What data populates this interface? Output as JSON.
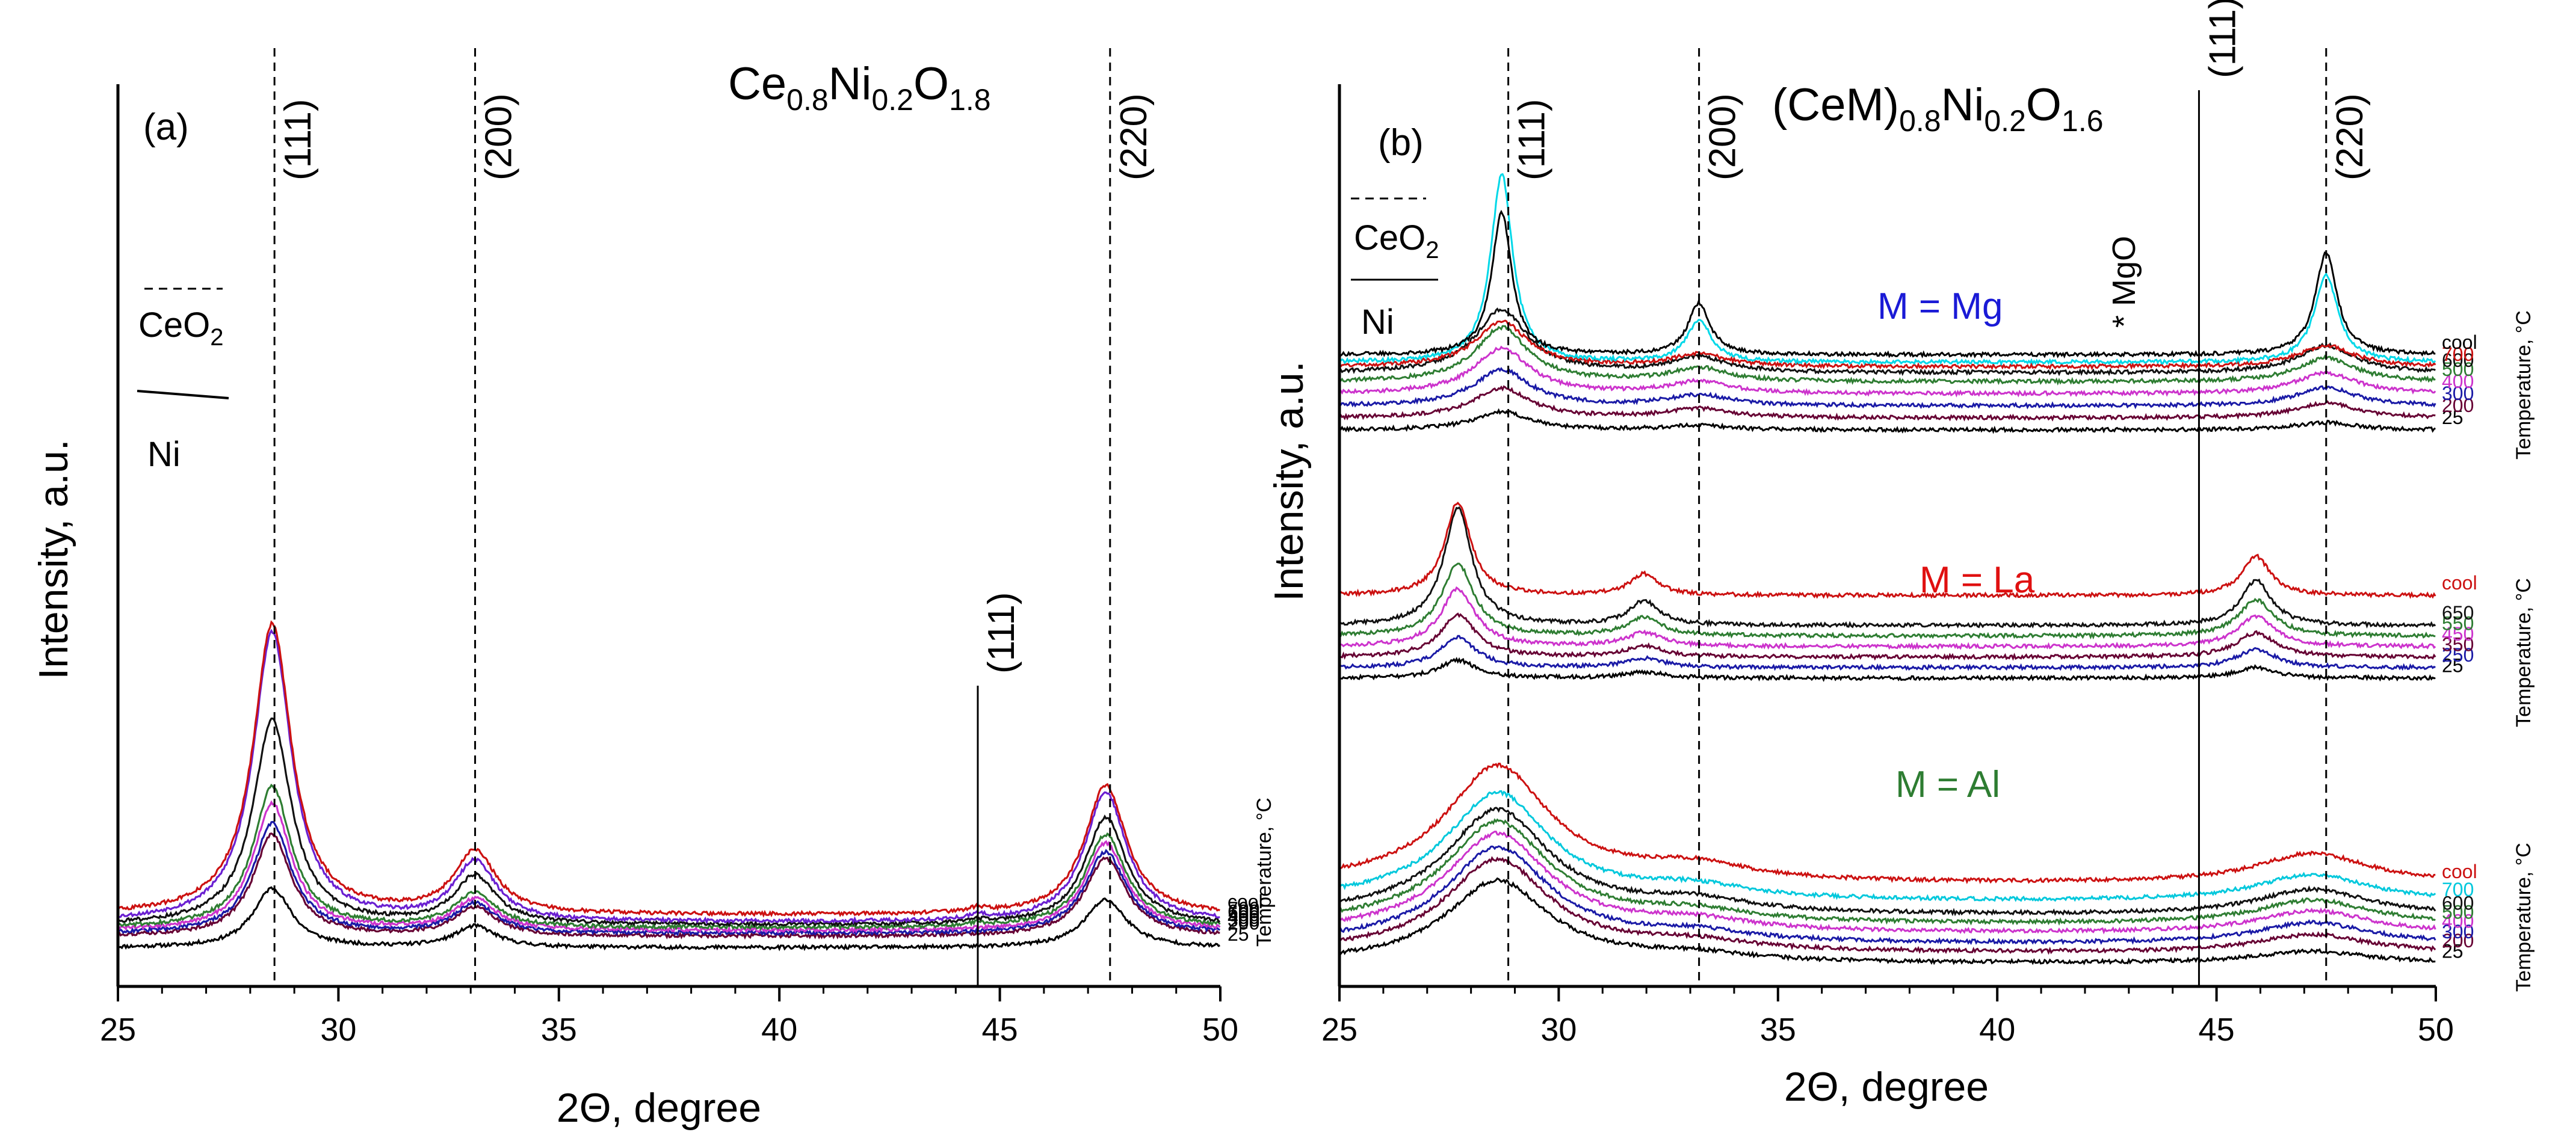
{
  "figure": {
    "description": "In-situ XRD patterns vs temperature"
  },
  "chart_data": [
    {
      "panel": "a",
      "type": "line",
      "panel_label": "(a)",
      "title_parts": [
        {
          "t": "Ce",
          "sub": false
        },
        {
          "t": "0.8",
          "sub": true
        },
        {
          "t": "Ni",
          "sub": false
        },
        {
          "t": "0.2",
          "sub": true
        },
        {
          "t": "O",
          "sub": false
        },
        {
          "t": "1.8",
          "sub": true
        }
      ],
      "xlabel": "2Θ, degree",
      "ylabel": "Intensity, a.u.",
      "xlim": [
        25,
        50
      ],
      "xticks": [
        "25",
        "30",
        "35",
        "40",
        "45",
        "50"
      ],
      "tick_values": [
        25,
        30,
        35,
        40,
        45,
        50
      ],
      "temperature_axis_label": "Temperature, °C",
      "legend": {
        "ceo2": "CeO",
        "ceo2_sub": "2",
        "ni": "Ni"
      },
      "reflections": [
        {
          "label": "(111)",
          "x": 28.55,
          "phase": "CeO2",
          "style": "dashed"
        },
        {
          "label": "(200)",
          "x": 33.1,
          "phase": "CeO2",
          "style": "dashed"
        },
        {
          "label": "(220)",
          "x": 47.5,
          "phase": "CeO2",
          "style": "dashed"
        },
        {
          "label": "(111)",
          "x": 44.5,
          "phase": "Ni",
          "style": "solid"
        }
      ],
      "peak_positions": [
        28.5,
        33.1,
        47.4
      ],
      "series": [
        {
          "name": "25",
          "color": "#000000",
          "baseline": 0.06,
          "peaks": [
            0.42,
            0.15,
            0.34
          ],
          "ni": 0.0
        },
        {
          "name": "200",
          "color": "#660033",
          "baseline": 0.14,
          "peaks": [
            0.72,
            0.2,
            0.55
          ],
          "ni": 0.0
        },
        {
          "name": "300",
          "color": "#1a1aa6",
          "baseline": 0.16,
          "peaks": [
            0.78,
            0.21,
            0.58
          ],
          "ni": 0.0
        },
        {
          "name": "400",
          "color": "#cc33cc",
          "baseline": 0.18,
          "peaks": [
            0.9,
            0.22,
            0.62
          ],
          "ni": 0.0
        },
        {
          "name": "500",
          "color": "#2e7d32",
          "baseline": 0.2,
          "peaks": [
            1.0,
            0.24,
            0.66
          ],
          "ni": 0.02
        },
        {
          "name": "600",
          "color": "#111111",
          "baseline": 0.22,
          "peaks": [
            1.45,
            0.34,
            0.76
          ],
          "ni": 0.02
        },
        {
          "name": "700",
          "color": "#6a1fd1",
          "baseline": 0.24,
          "peaks": [
            2.05,
            0.42,
            0.92
          ],
          "ni": 0.03
        },
        {
          "name": "cool",
          "color": "#cc1111",
          "baseline": 0.29,
          "peaks": [
            2.06,
            0.44,
            0.92
          ],
          "ni": 0.03
        }
      ]
    },
    {
      "panel": "b",
      "type": "line",
      "panel_label": "(b)",
      "title_parts": [
        {
          "t": "(CeM)",
          "sub": false
        },
        {
          "t": "0.8",
          "sub": true
        },
        {
          "t": "Ni",
          "sub": false
        },
        {
          "t": "0.2",
          "sub": true
        },
        {
          "t": "O",
          "sub": false
        },
        {
          "t": "1.6",
          "sub": true
        }
      ],
      "xlabel": "2Θ, degree",
      "ylabel": "Intensity, a.u.",
      "xlim": [
        25,
        50
      ],
      "xticks": [
        "25",
        "30",
        "35",
        "40",
        "45",
        "50"
      ],
      "tick_values": [
        25,
        30,
        35,
        40,
        45,
        50
      ],
      "temperature_axis_label": "Temperature, °C",
      "legend": {
        "ceo2": "CeO",
        "ceo2_sub": "2",
        "ni": "Ni"
      },
      "reflections": [
        {
          "label": "(111)",
          "x": 28.85,
          "phase": "CeO2",
          "style": "dashed"
        },
        {
          "label": "(200)",
          "x": 33.2,
          "phase": "CeO2",
          "style": "dashed"
        },
        {
          "label": "(220)",
          "x": 47.5,
          "phase": "CeO2",
          "style": "dashed"
        },
        {
          "label": "(111)",
          "x": 44.6,
          "phase": "Ni",
          "style": "solid"
        }
      ],
      "mgo_marker": {
        "label": "* MgO",
        "x": 43.0
      },
      "groups": [
        {
          "label": "M = Mg",
          "label_color": "#1a1ad6",
          "peak_positions": [
            28.7,
            33.2,
            47.5
          ],
          "series": [
            {
              "name": "25",
              "color": "#000000",
              "baseline": 3.6,
              "peaks": [
                0.12,
                0.03,
                0.05
              ],
              "width": 1.4
            },
            {
              "name": "200",
              "color": "#660033",
              "baseline": 3.68,
              "peaks": [
                0.2,
                0.06,
                0.1
              ],
              "width": 1.4
            },
            {
              "name": "300",
              "color": "#1a1aa6",
              "baseline": 3.76,
              "peaks": [
                0.24,
                0.07,
                0.12
              ],
              "width": 1.4
            },
            {
              "name": "400",
              "color": "#cc33cc",
              "baseline": 3.84,
              "peaks": [
                0.3,
                0.08,
                0.14
              ],
              "width": 1.4
            },
            {
              "name": "500",
              "color": "#2e7d32",
              "baseline": 3.92,
              "peaks": [
                0.36,
                0.09,
                0.16
              ],
              "width": 1.3
            },
            {
              "name": "600",
              "color": "#111111",
              "baseline": 3.98,
              "peaks": [
                0.42,
                0.1,
                0.18
              ],
              "width": 1.3
            },
            {
              "name": "700",
              "color": "#cc1111",
              "baseline": 4.02,
              "peaks": [
                0.3,
                0.08,
                0.14
              ],
              "width": 1.3
            },
            {
              "name": "",
              "color": "#00d8e8",
              "baseline": 4.05,
              "peaks": [
                1.25,
                0.28,
                0.58
              ],
              "width": 0.55
            },
            {
              "name": "cool",
              "color": "#000000",
              "baseline": 4.1,
              "peaks": [
                0.95,
                0.34,
                0.68
              ],
              "width": 0.5
            }
          ]
        },
        {
          "label": "M = La",
          "label_color": "#e01010",
          "peak_positions": [
            27.7,
            31.95,
            45.9
          ],
          "series": [
            {
              "name": "25",
              "color": "#000000",
              "baseline": 1.95,
              "peaks": [
                0.12,
                0.04,
                0.07
              ],
              "width": 0.9
            },
            {
              "name": "250",
              "color": "#1a1aa6",
              "baseline": 2.02,
              "peaks": [
                0.2,
                0.06,
                0.12
              ],
              "width": 0.9
            },
            {
              "name": "350",
              "color": "#660033",
              "baseline": 2.09,
              "peaks": [
                0.28,
                0.07,
                0.16
              ],
              "width": 0.9
            },
            {
              "name": "450",
              "color": "#cc33cc",
              "baseline": 2.16,
              "peaks": [
                0.38,
                0.09,
                0.2
              ],
              "width": 0.85
            },
            {
              "name": "550",
              "color": "#2e7d32",
              "baseline": 2.23,
              "peaks": [
                0.48,
                0.12,
                0.24
              ],
              "width": 0.8
            },
            {
              "name": "650",
              "color": "#111111",
              "baseline": 2.3,
              "peaks": [
                0.78,
                0.16,
                0.3
              ],
              "width": 0.7
            },
            {
              "name": "cool",
              "color": "#cc1111",
              "baseline": 2.5,
              "peaks": [
                0.62,
                0.14,
                0.26
              ],
              "width": 0.65
            }
          ]
        },
        {
          "label": "M = Al",
          "label_color": "#2e7d32",
          "peak_positions": [
            28.6,
            33.1,
            47.2
          ],
          "series": [
            {
              "name": "25",
              "color": "#000000",
              "baseline": 0.05,
              "peaks": [
                0.55,
                0.05,
                0.08
              ],
              "width": 2.6
            },
            {
              "name": "200",
              "color": "#660033",
              "baseline": 0.12,
              "peaks": [
                0.62,
                0.06,
                0.12
              ],
              "width": 2.6
            },
            {
              "name": "300",
              "color": "#1a1aa6",
              "baseline": 0.18,
              "peaks": [
                0.64,
                0.06,
                0.14
              ],
              "width": 2.6
            },
            {
              "name": "400",
              "color": "#cc33cc",
              "baseline": 0.25,
              "peaks": [
                0.66,
                0.07,
                0.15
              ],
              "width": 2.6
            },
            {
              "name": "500",
              "color": "#2e7d32",
              "baseline": 0.31,
              "peaks": [
                0.68,
                0.07,
                0.16
              ],
              "width": 2.6
            },
            {
              "name": "600",
              "color": "#111111",
              "baseline": 0.37,
              "peaks": [
                0.7,
                0.08,
                0.17
              ],
              "width": 2.6
            },
            {
              "name": "700",
              "color": "#00c8dc",
              "baseline": 0.46,
              "peaks": [
                0.72,
                0.08,
                0.18
              ],
              "width": 2.6
            },
            {
              "name": "cool",
              "color": "#cc1111",
              "baseline": 0.58,
              "peaks": [
                0.78,
                0.1,
                0.2
              ],
              "width": 2.6
            }
          ]
        }
      ]
    }
  ]
}
